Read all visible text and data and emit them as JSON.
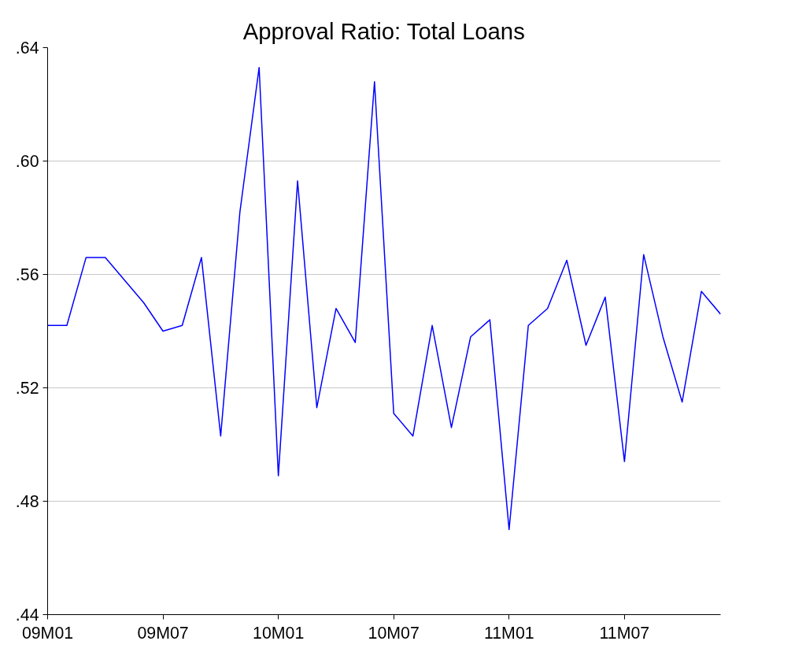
{
  "chart_data": {
    "type": "line",
    "title": "Approval Ratio: Total Loans",
    "categories": [
      "09M01",
      null,
      null,
      null,
      null,
      null,
      "09M07",
      null,
      null,
      null,
      null,
      null,
      "10M01",
      null,
      null,
      null,
      null,
      null,
      "10M07",
      null,
      null,
      null,
      null,
      null,
      "11M01",
      null,
      null,
      null,
      null,
      null,
      "11M07",
      null,
      null,
      null,
      null,
      null
    ],
    "series": [
      {
        "color": "#0000ff",
        "values": [
          0.542,
          0.542,
          0.566,
          0.566,
          0.558,
          0.55,
          0.54,
          0.542,
          0.566,
          0.503,
          0.582,
          0.633,
          0.489,
          0.593,
          0.513,
          0.548,
          0.536,
          0.628,
          0.511,
          0.503,
          0.542,
          0.506,
          0.538,
          0.544,
          0.47,
          0.542,
          0.548,
          0.565,
          0.535,
          0.552,
          0.494,
          0.567,
          0.538,
          0.515,
          0.554,
          0.546
        ]
      }
    ],
    "ylim": [
      0.44,
      0.64
    ],
    "yticks": [
      {
        "value": 0.44,
        "label": ".44"
      },
      {
        "value": 0.48,
        "label": ".48"
      },
      {
        "value": 0.52,
        "label": ".52"
      },
      {
        "value": 0.56,
        "label": ".56"
      },
      {
        "value": 0.6,
        "label": ".60"
      },
      {
        "value": 0.64,
        "label": ".64"
      }
    ],
    "grid": "y",
    "marker": "none",
    "line_style": "solid"
  }
}
